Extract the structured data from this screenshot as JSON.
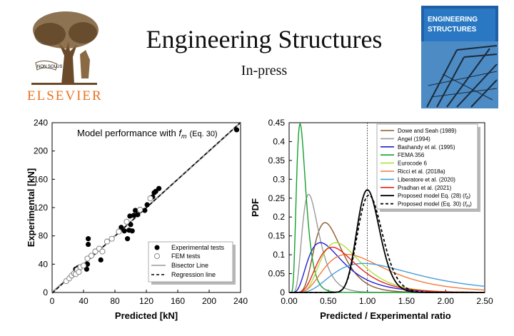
{
  "header": {
    "title": "Engineering Structures",
    "subtitle": "In-press",
    "publisher": "ELSEVIER",
    "logo_banner": "NON SOLUS",
    "cover_title": [
      "ENGINEERING",
      "STRUCTURES"
    ]
  },
  "chart_data": [
    {
      "type": "scatter",
      "title": "",
      "annotation_prefix": "Model performance with ",
      "annotation_symbol": "f",
      "annotation_sub": "m",
      "annotation_suffix": "(Eq. 30)",
      "xlabel": "Predicted [kN]",
      "ylabel": "Experimental [kN]",
      "xlim": [
        0,
        240
      ],
      "ylim": [
        0,
        240
      ],
      "xticks": [
        "0",
        "40",
        "80",
        "120",
        "160",
        "200",
        "240"
      ],
      "yticks": [
        "0",
        "40",
        "80",
        "120",
        "160",
        "200",
        "240"
      ],
      "legend_position": "bottom-right",
      "series": [
        {
          "name": "Experimental tests",
          "marker": "filled-circle",
          "points": [
            [
              30,
              33
            ],
            [
              33,
              35
            ],
            [
              35,
              36
            ],
            [
              44,
              33
            ],
            [
              45,
              40
            ],
            [
              46,
              68
            ],
            [
              46,
              76
            ],
            [
              62,
              46
            ],
            [
              88,
              92
            ],
            [
              92,
              87
            ],
            [
              96,
              76
            ],
            [
              98,
              88
            ],
            [
              99,
              108
            ],
            [
              100,
              96
            ],
            [
              102,
              87
            ],
            [
              104,
              109
            ],
            [
              106,
              116
            ],
            [
              109,
              110
            ],
            [
              118,
              116
            ],
            [
              121,
              124
            ],
            [
              128,
              135
            ],
            [
              130,
              141
            ],
            [
              132,
              143
            ],
            [
              136,
              147
            ],
            [
              235,
              230
            ]
          ]
        },
        {
          "name": "FEM tests",
          "marker": "open-circle",
          "points": [
            [
              18,
              16
            ],
            [
              22,
              20
            ],
            [
              25,
              24
            ],
            [
              28,
              27
            ],
            [
              30,
              26
            ],
            [
              32,
              32
            ],
            [
              34,
              29
            ],
            [
              36,
              36
            ],
            [
              40,
              38
            ],
            [
              45,
              48
            ],
            [
              50,
              52
            ],
            [
              55,
              58
            ],
            [
              60,
              62
            ],
            [
              64,
              58
            ],
            [
              70,
              72
            ],
            [
              76,
              76
            ],
            [
              85,
              86
            ],
            [
              95,
              100
            ],
            [
              112,
              117
            ],
            [
              125,
              133
            ]
          ]
        }
      ],
      "lines": [
        {
          "name": "Bisector Line",
          "style": "solid",
          "color": "#999999",
          "from": [
            0,
            0
          ],
          "to": [
            240,
            240
          ]
        },
        {
          "name": "Regression line",
          "style": "dashed",
          "color": "#000000",
          "from": [
            0,
            -1
          ],
          "to": [
            240,
            240.5
          ]
        }
      ]
    },
    {
      "type": "line",
      "title": "",
      "xlabel": "Predicted / Experimental ratio",
      "ylabel": "PDF",
      "xlim": [
        0,
        2.5
      ],
      "ylim": [
        0,
        0.45
      ],
      "xticks": [
        "0.00",
        "0.50",
        "1.00",
        "1.50",
        "2.00",
        "2.50"
      ],
      "yticks": [
        "0",
        "0.05",
        "0.1",
        "0.15",
        "0.2",
        "0.25",
        "0.3",
        "0.35",
        "0.4",
        "0.45"
      ],
      "vline": 1.0,
      "legend_position": "top-right",
      "series": [
        {
          "name": "Dowe and Seah (1989)",
          "color": "#8b5a2b",
          "mode": 0.46,
          "peak": 0.185,
          "sigma": 0.38,
          "dash": ""
        },
        {
          "name": "Angel (1994)",
          "color": "#9a9a9a",
          "mode": 0.25,
          "peak": 0.26,
          "sigma": 0.42,
          "dash": ""
        },
        {
          "name": "Bashandy et al. (1995)",
          "color": "#1f1fd6",
          "mode": 0.4,
          "peak": 0.132,
          "sigma": 0.55,
          "dash": ""
        },
        {
          "name": "FEMA 356",
          "color": "#14a02e",
          "mode": 0.14,
          "peak": 0.447,
          "sigma": 0.42,
          "dash": ""
        },
        {
          "name": "Eurocode 6",
          "color": "#aee03a",
          "mode": 0.6,
          "peak": 0.132,
          "sigma": 0.42,
          "dash": ""
        },
        {
          "name": "Ricci et al. (2018a)",
          "color": "#f07c3a",
          "mode": 0.74,
          "peak": 0.101,
          "sigma": 0.52,
          "dash": ""
        },
        {
          "name": "Liberatore et al. (2020)",
          "color": "#4a9cd8",
          "mode": 0.95,
          "peak": 0.077,
          "sigma": 0.55,
          "dash": ""
        },
        {
          "name": "Pradhan et al. (2021)",
          "color": "#e8231f",
          "mode": 0.55,
          "peak": 0.12,
          "sigma": 0.45,
          "dash": ""
        },
        {
          "name": "Proposed model Eq. (28)",
          "color": "#000000",
          "mode": 1.0,
          "peak": 0.272,
          "sigma": 0.145,
          "dash": "",
          "symbol": "f",
          "sub": "b"
        },
        {
          "name": "Proposed model (Eq. 30)",
          "color": "#000000",
          "mode": 1.02,
          "peak": 0.258,
          "sigma": 0.155,
          "dash": "4,3",
          "symbol": "f",
          "sub": "m"
        }
      ]
    }
  ]
}
